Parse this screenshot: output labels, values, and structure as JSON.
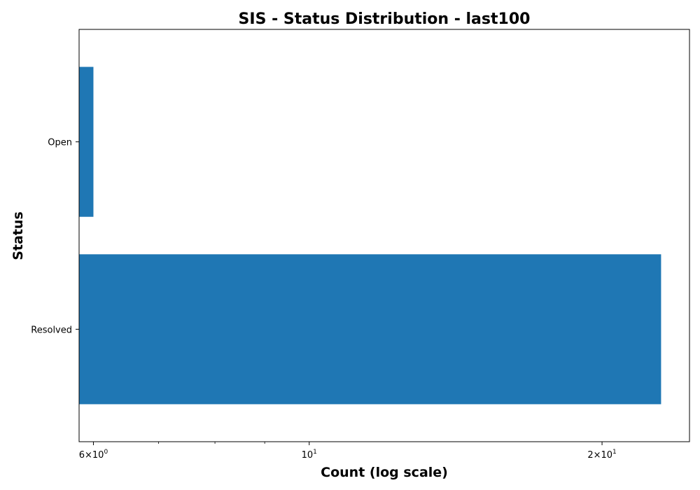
{
  "chart_data": {
    "type": "bar",
    "orientation": "horizontal",
    "title": "SIS - Status Distribution - last100",
    "xlabel": "Count (log scale)",
    "ylabel": "Status",
    "x_scale": "log",
    "xlim": [
      5.8,
      24.6
    ],
    "categories": [
      "Open",
      "Resolved"
    ],
    "values": [
      6,
      23
    ],
    "x_major_ticks": [
      {
        "value": 6,
        "mantissa": "6",
        "exponent": "0"
      },
      {
        "value": 10,
        "mantissa": "",
        "exponent": "1"
      },
      {
        "value": 20,
        "mantissa": "2",
        "exponent": "1"
      }
    ],
    "x_minor_ticks": [
      7,
      8,
      9
    ],
    "bar_color": "#1f77b4",
    "grid": false,
    "legend": false
  }
}
